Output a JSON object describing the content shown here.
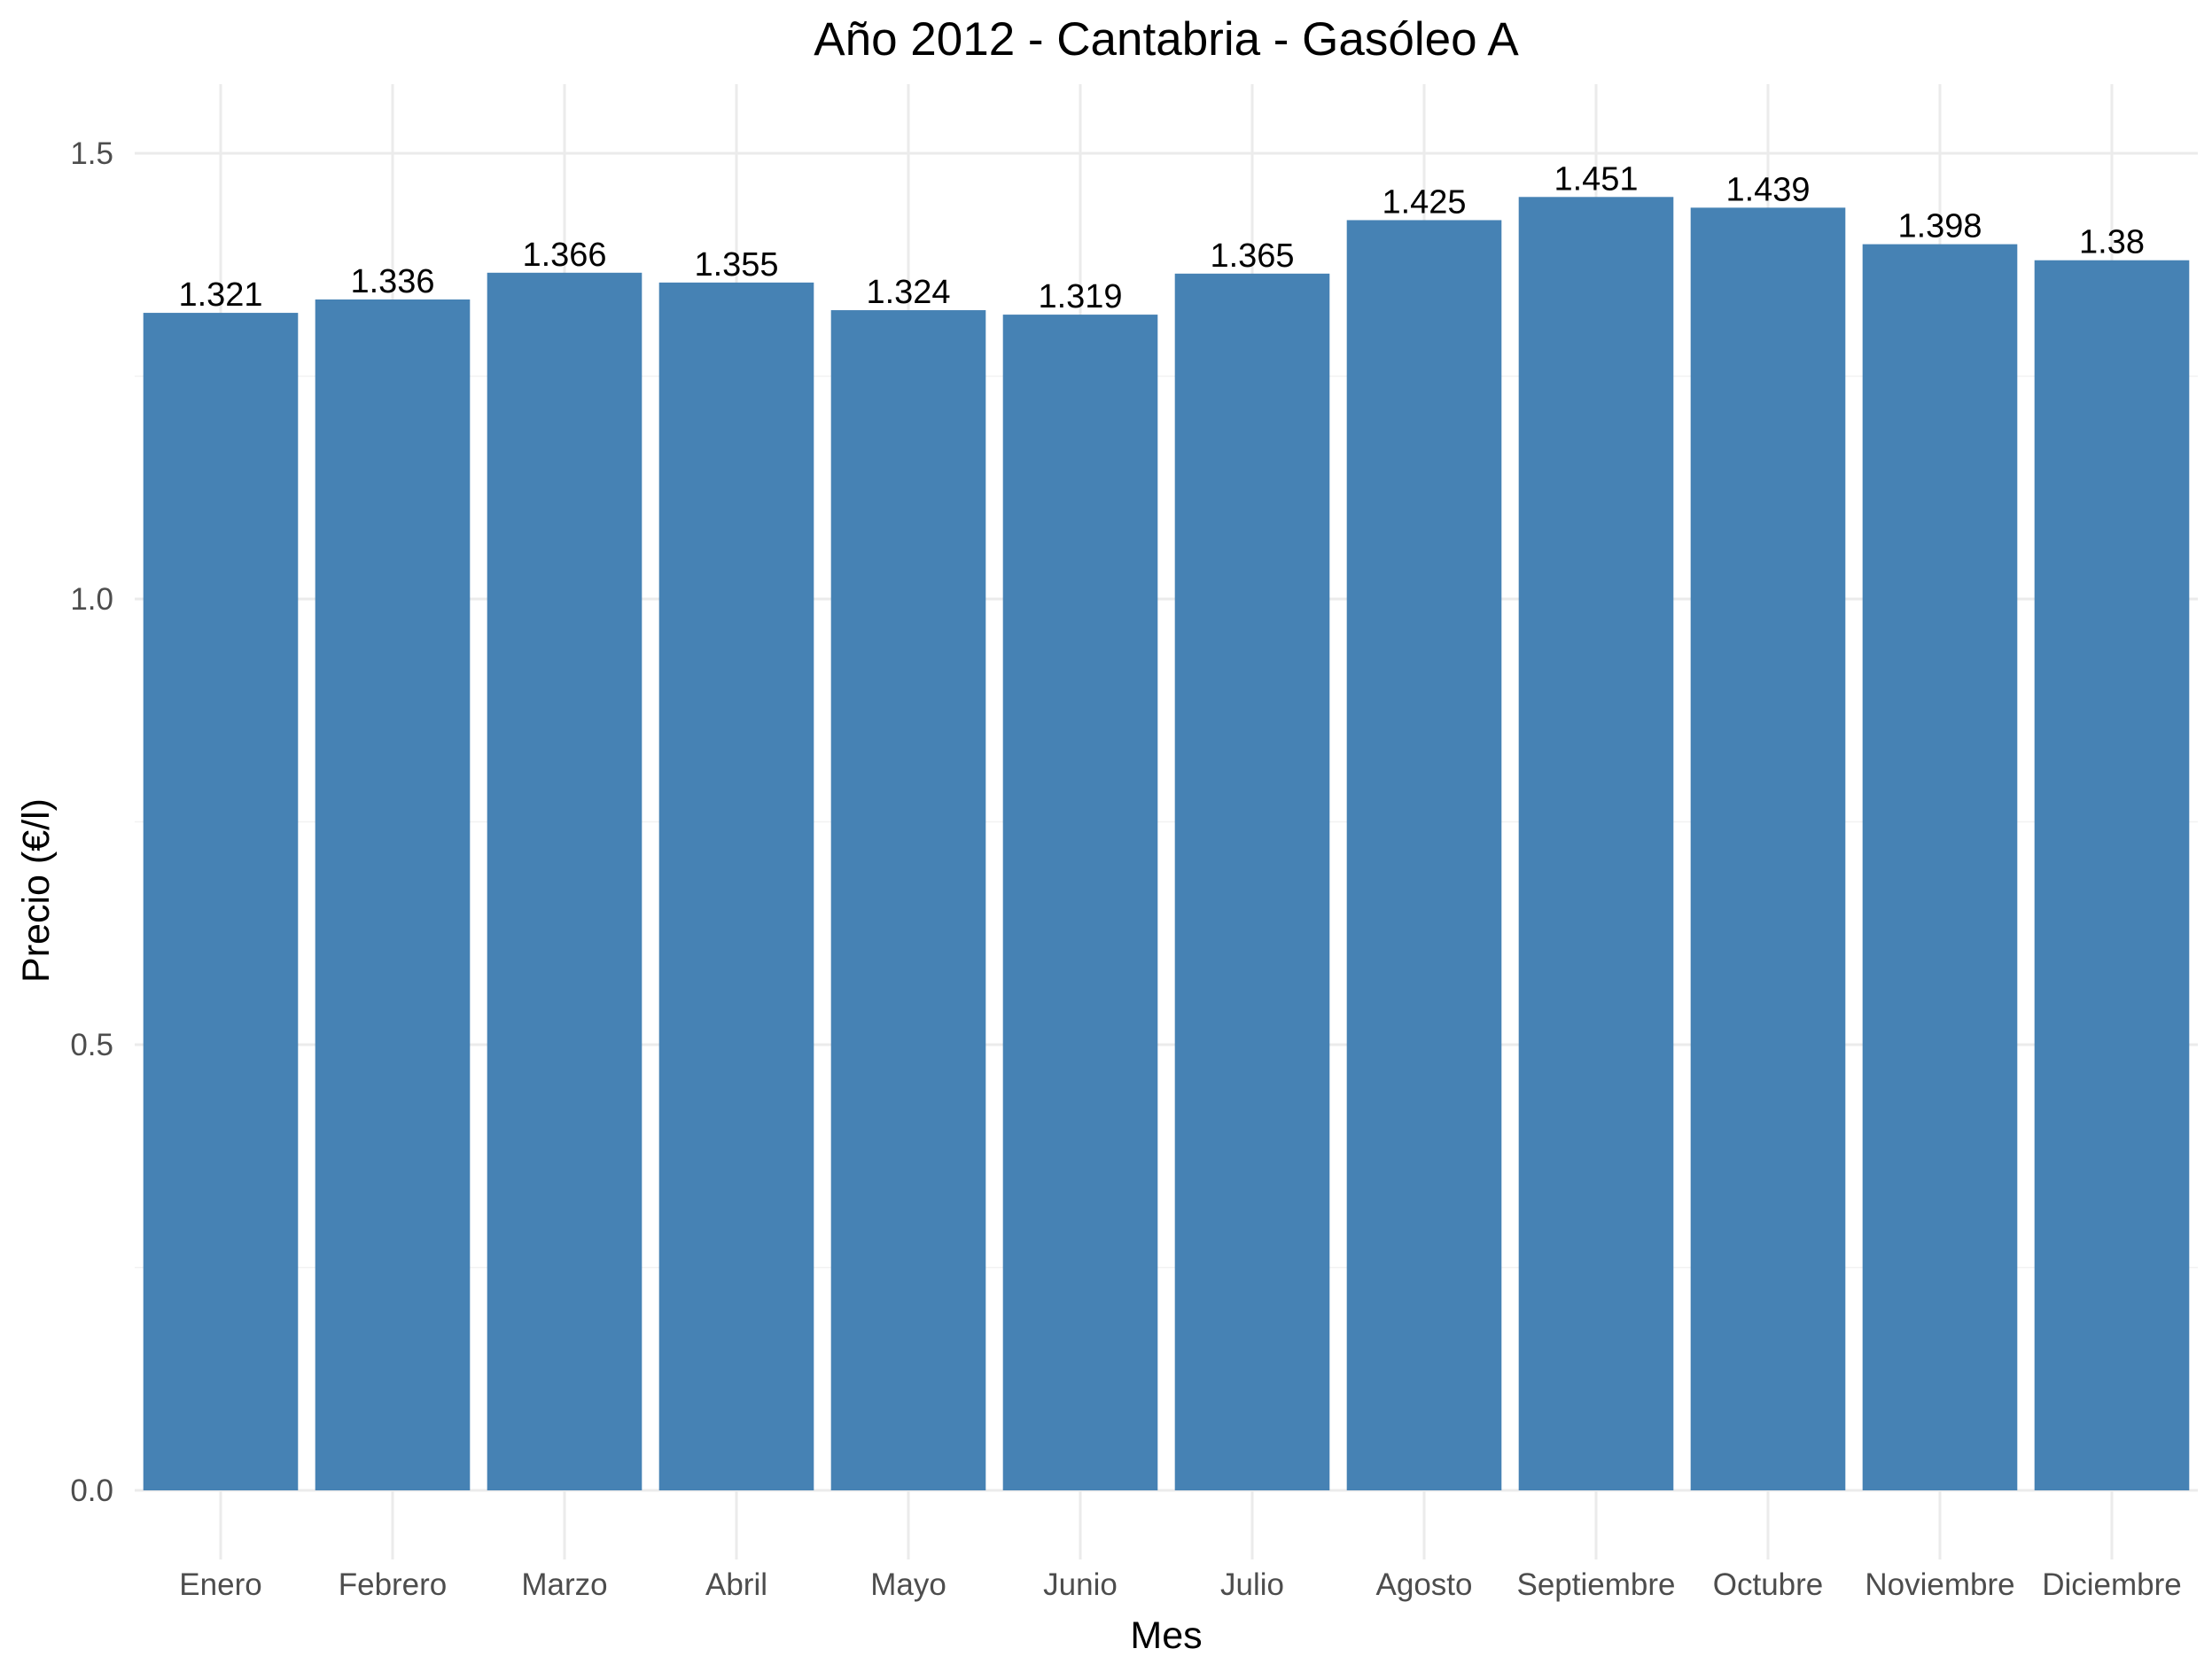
{
  "chart_data": {
    "type": "bar",
    "title": "Año 2012 - Cantabria - Gasóleo A",
    "xlabel": "Mes",
    "ylabel": "Precio (€/l)",
    "categories": [
      "Enero",
      "Febrero",
      "Marzo",
      "Abril",
      "Mayo",
      "Junio",
      "Julio",
      "Agosto",
      "Septiembre",
      "Octubre",
      "Noviembre",
      "Diciembre"
    ],
    "values": [
      1.321,
      1.336,
      1.366,
      1.355,
      1.324,
      1.319,
      1.365,
      1.425,
      1.451,
      1.439,
      1.398,
      1.38
    ],
    "data_labels": [
      "1.321",
      "1.336",
      "1.366",
      "1.355",
      "1.324",
      "1.319",
      "1.365",
      "1.425",
      "1.451",
      "1.439",
      "1.398",
      "1.38"
    ],
    "yticks": [
      0,
      0.5,
      1,
      1.5
    ],
    "ytick_labels": [
      "0.0",
      "0.5",
      "1.0",
      "1.5"
    ],
    "ylim": [
      0,
      1.58
    ],
    "grid": true,
    "legend": "none",
    "bar_color": "#4682b4"
  }
}
